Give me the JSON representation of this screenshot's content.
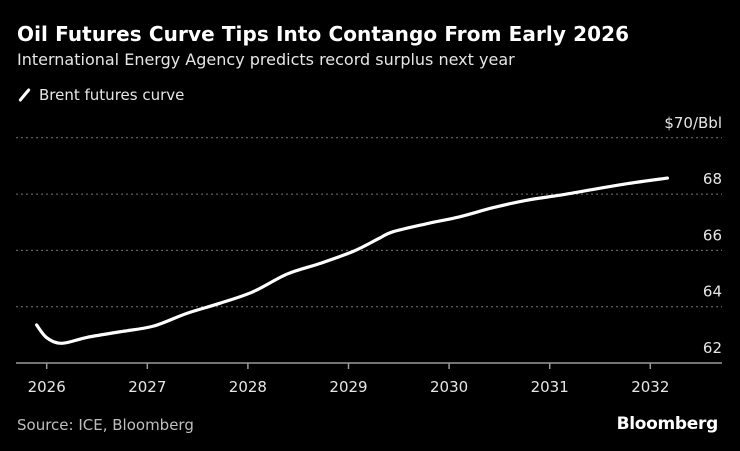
{
  "chart_data": {
    "type": "line",
    "title": "Oil Futures Curve Tips Into Contango From Early 2026",
    "subtitle": "International Energy Agency predicts record surplus next year",
    "ylabel": "$70/Bbl",
    "xlabel": "",
    "ylim": [
      62,
      70
    ],
    "xlim": [
      2025.8,
      2032.7
    ],
    "y_ticks": [
      "62",
      "64",
      "66",
      "68",
      "$70/Bbl"
    ],
    "y_tick_values": [
      62,
      64,
      66,
      68,
      70
    ],
    "x_ticks": [
      "2026",
      "2027",
      "2028",
      "2029",
      "2030",
      "2031",
      "2032"
    ],
    "x_tick_values": [
      2026,
      2027,
      2028,
      2029,
      2030,
      2031,
      2032
    ],
    "grid": true,
    "legend_position": "top-left",
    "series": [
      {
        "name": "Brent futures curve",
        "color": "#ffffff",
        "x": [
          2025.9,
          2026.0,
          2026.15,
          2026.4,
          2026.73,
          2027.06,
          2027.39,
          2027.72,
          2028.05,
          2028.39,
          2028.72,
          2029.05,
          2029.3,
          2029.44,
          2029.78,
          2030.1,
          2030.44,
          2030.77,
          2031.1,
          2031.44,
          2031.77,
          2032.17
        ],
        "y": [
          63.35,
          62.9,
          62.7,
          62.91,
          63.11,
          63.31,
          63.76,
          64.12,
          64.53,
          65.16,
          65.54,
          65.97,
          66.42,
          66.66,
          66.95,
          67.19,
          67.52,
          67.78,
          67.96,
          68.17,
          68.37,
          68.57
        ]
      }
    ]
  },
  "source": "Source: ICE, Bloomberg",
  "logo": "Bloomberg"
}
